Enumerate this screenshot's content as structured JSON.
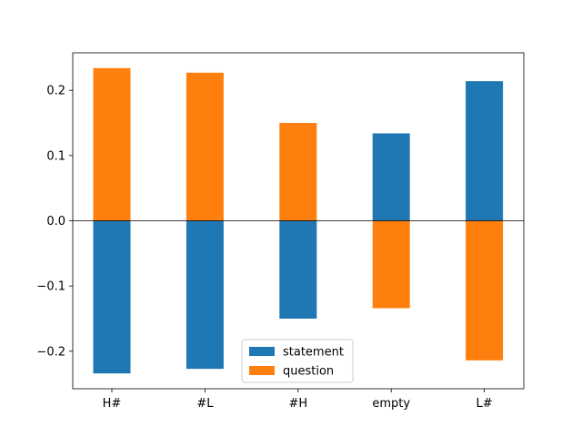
{
  "chart_data": {
    "type": "bar",
    "categories": [
      "H#",
      "#L",
      "#H",
      "empty",
      "L#"
    ],
    "series": [
      {
        "name": "statement",
        "color": "#1f77b4",
        "values": [
          -0.234,
          -0.227,
          -0.15,
          0.134,
          0.214
        ]
      },
      {
        "name": "question",
        "color": "#ff7f0e",
        "values": [
          0.234,
          0.227,
          0.15,
          -0.134,
          -0.214
        ]
      }
    ],
    "y_ticks": [
      -0.2,
      -0.1,
      0.0,
      0.1,
      0.2
    ],
    "y_tick_labels": [
      "−0.2",
      "−0.1",
      "0.0",
      "0.1",
      "0.2"
    ],
    "ylim": [
      -0.2575,
      0.2575
    ],
    "zero_line": true,
    "grid": false,
    "legend": "bottom-center",
    "title": "",
    "xlabel": "",
    "ylabel": ""
  }
}
